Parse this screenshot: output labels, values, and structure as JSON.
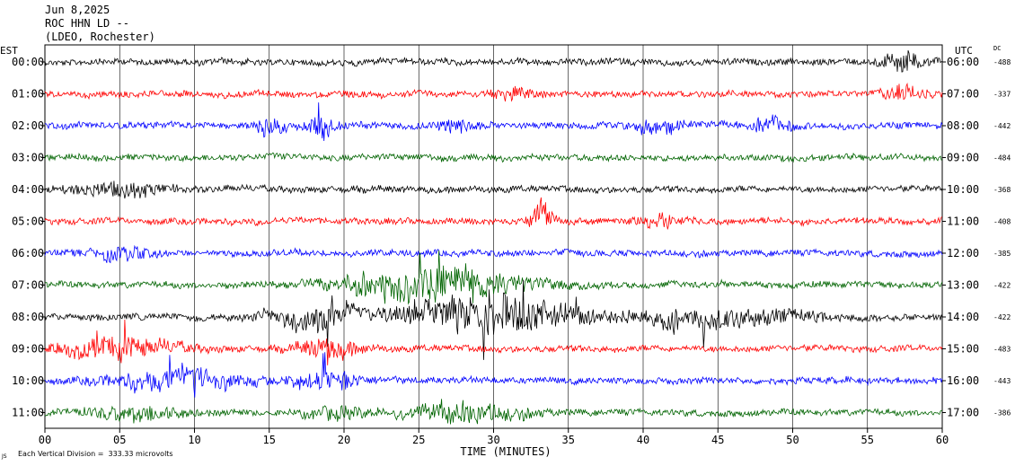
{
  "header": {
    "date": "Jun 8,2025",
    "station": "ROC HHN LD --",
    "network": "(LDEO, Rochester)"
  },
  "left_axis_label": "EST",
  "right_axis_label": "UTC",
  "dc_label": "DC",
  "footer": {
    "mark": "JS",
    "scale_text": "Each Vertical Division =  333.33 microvolts"
  },
  "colors": {
    "black": "#000000",
    "red": "#ff0000",
    "blue": "#0000ff",
    "green": "#006400",
    "grid": "#000000"
  },
  "chart_data": {
    "type": "line",
    "title": "",
    "xlabel": "TIME (MINUTES)",
    "xlim": [
      0,
      60
    ],
    "x_ticks": [
      "00",
      "05",
      "10",
      "15",
      "20",
      "25",
      "30",
      "35",
      "40",
      "45",
      "50",
      "55",
      "60"
    ],
    "rows": [
      {
        "est": "00:00",
        "utc": "06:00",
        "dc": "-488",
        "color": "black",
        "events": [
          {
            "t": 57.3,
            "amp": 2.4,
            "width": 1.5
          }
        ]
      },
      {
        "est": "01:00",
        "utc": "07:00",
        "dc": "-337",
        "color": "red",
        "events": [
          {
            "t": 31.5,
            "amp": 1.4,
            "width": 1.5
          },
          {
            "t": 57.5,
            "amp": 2.0,
            "width": 1.2
          }
        ]
      },
      {
        "est": "02:00",
        "utc": "08:00",
        "dc": "-442",
        "color": "blue",
        "events": [
          {
            "t": 15.0,
            "amp": 2.2,
            "width": 1.0
          },
          {
            "t": 18.5,
            "amp": 2.8,
            "width": 1.0
          },
          {
            "t": 27.5,
            "amp": 2.0,
            "width": 1.2
          },
          {
            "t": 41.0,
            "amp": 2.0,
            "width": 1.5
          },
          {
            "t": 48.5,
            "amp": 2.0,
            "width": 1.5
          }
        ]
      },
      {
        "est": "03:00",
        "utc": "09:00",
        "dc": "-484",
        "color": "green",
        "events": []
      },
      {
        "est": "04:00",
        "utc": "10:00",
        "dc": "-368",
        "color": "black",
        "events": [
          {
            "t": 5.0,
            "amp": 1.8,
            "width": 3.0
          }
        ]
      },
      {
        "est": "05:00",
        "utc": "11:00",
        "dc": "-408",
        "color": "red",
        "events": [
          {
            "t": 33.0,
            "amp": 4.5,
            "width": 0.8
          },
          {
            "t": 41.0,
            "amp": 1.6,
            "width": 1.5
          }
        ]
      },
      {
        "est": "06:00",
        "utc": "12:00",
        "dc": "-385",
        "color": "blue",
        "events": [
          {
            "t": 5.0,
            "amp": 1.6,
            "width": 2.0
          }
        ]
      },
      {
        "est": "07:00",
        "utc": "13:00",
        "dc": "-422",
        "color": "green",
        "events": [
          {
            "t": 26.0,
            "amp": 4.5,
            "width": 6.0
          }
        ]
      },
      {
        "est": "08:00",
        "utc": "14:00",
        "dc": "-422",
        "color": "black",
        "events": [
          {
            "t": 18.0,
            "amp": 3.0,
            "width": 3.0
          },
          {
            "t": 30.0,
            "amp": 5.0,
            "width": 6.0
          },
          {
            "t": 45.0,
            "amp": 2.5,
            "width": 6.0
          }
        ]
      },
      {
        "est": "09:00",
        "utc": "15:00",
        "dc": "-483",
        "color": "red",
        "events": [
          {
            "t": 5.0,
            "amp": 2.5,
            "width": 4.0
          },
          {
            "t": 19.0,
            "amp": 2.5,
            "width": 2.0
          }
        ]
      },
      {
        "est": "10:00",
        "utc": "16:00",
        "dc": "-443",
        "color": "blue",
        "events": [
          {
            "t": 9.0,
            "amp": 3.0,
            "width": 4.5
          },
          {
            "t": 19.0,
            "amp": 3.0,
            "width": 2.0
          }
        ]
      },
      {
        "est": "11:00",
        "utc": "17:00",
        "dc": "-386",
        "color": "green",
        "events": [
          {
            "t": 6.0,
            "amp": 1.8,
            "width": 3.0
          },
          {
            "t": 19.5,
            "amp": 1.5,
            "width": 2.0
          },
          {
            "t": 28.0,
            "amp": 2.5,
            "width": 4.0
          }
        ]
      }
    ]
  }
}
